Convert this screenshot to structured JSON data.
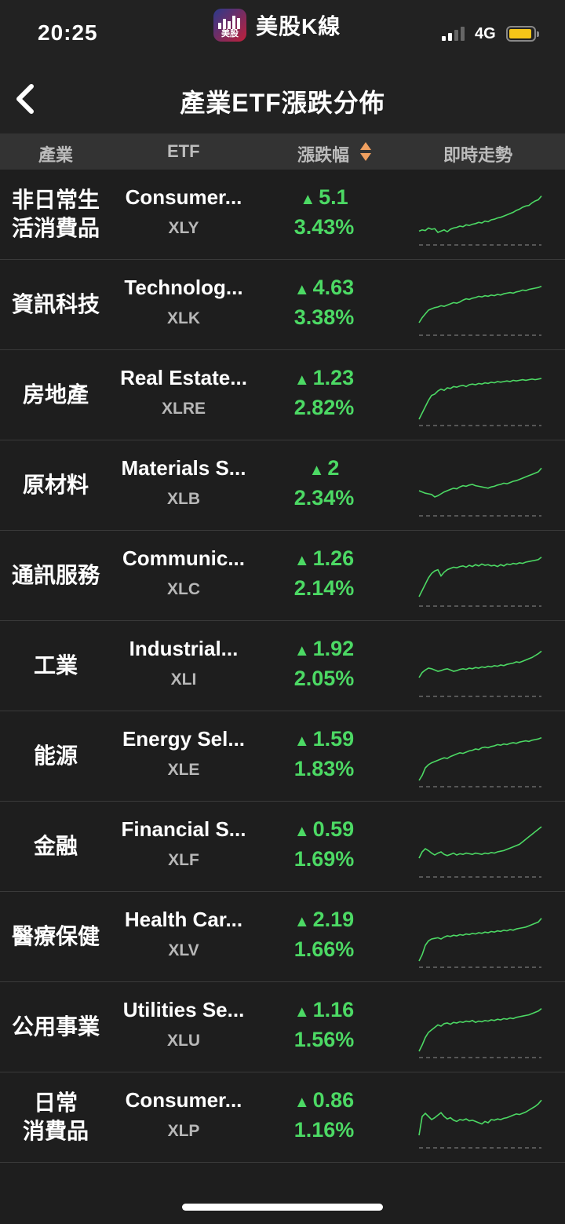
{
  "status_bar": {
    "time": "20:25",
    "network": "4G"
  },
  "app": {
    "name": "美股K線",
    "logo_text": "美股"
  },
  "nav": {
    "title": "產業ETF漲跌分佈"
  },
  "columns": {
    "industry": "產業",
    "etf": "ETF",
    "change": "漲跌幅",
    "trend": "即時走勢"
  },
  "colors": {
    "up": "#4cd964",
    "down": "#ff3b30",
    "background": "#1e1e1e"
  },
  "rows": [
    {
      "industry": "非日常生\n活消費品",
      "etf_name": "Consumer...",
      "symbol": "XLY",
      "change": "5.1",
      "pct": "3.43%",
      "trend": [
        22,
        24,
        23,
        27,
        25,
        26,
        20,
        22,
        24,
        21,
        25,
        27,
        28,
        30,
        29,
        32,
        31,
        33,
        34,
        36,
        35,
        38,
        37,
        40,
        41,
        43,
        44,
        46,
        48,
        50,
        52,
        55,
        57,
        60,
        62,
        63,
        67,
        70,
        72,
        78
      ]
    },
    {
      "industry": "資訊科技",
      "etf_name": "Technolog...",
      "symbol": "XLK",
      "change": "4.63",
      "pct": "3.38%",
      "trend": [
        20,
        28,
        34,
        40,
        42,
        44,
        45,
        47,
        46,
        48,
        50,
        52,
        51,
        53,
        56,
        58,
        57,
        59,
        60,
        62,
        61,
        63,
        62,
        64,
        63,
        65,
        64,
        66,
        67,
        68,
        67,
        69,
        70,
        72,
        71,
        73,
        74,
        75,
        76,
        78
      ]
    },
    {
      "industry": "房地產",
      "etf_name": "Real Estate...",
      "symbol": "XLRE",
      "change": "1.23",
      "pct": "2.82%",
      "trend": [
        10,
        20,
        30,
        40,
        48,
        50,
        55,
        58,
        56,
        60,
        59,
        62,
        61,
        63,
        64,
        62,
        65,
        66,
        65,
        67,
        66,
        68,
        67,
        69,
        68,
        70,
        69,
        70,
        71,
        70,
        72,
        71,
        72,
        73,
        72,
        73,
        74,
        73,
        74,
        75
      ]
    },
    {
      "industry": "原材料",
      "etf_name": "Materials S...",
      "symbol": "XLB",
      "change": "2",
      "pct": "2.34%",
      "trend": [
        40,
        38,
        36,
        35,
        34,
        30,
        32,
        35,
        38,
        40,
        42,
        44,
        43,
        46,
        48,
        47,
        49,
        50,
        48,
        47,
        46,
        45,
        44,
        46,
        47,
        49,
        50,
        52,
        51,
        53,
        55,
        56,
        58,
        60,
        62,
        64,
        66,
        68,
        70,
        76
      ]
    },
    {
      "industry": "通訊服務",
      "etf_name": "Communic...",
      "symbol": "XLC",
      "change": "1.26",
      "pct": "2.14%",
      "trend": [
        15,
        25,
        35,
        45,
        52,
        56,
        58,
        48,
        54,
        58,
        60,
        62,
        61,
        63,
        64,
        62,
        65,
        63,
        66,
        64,
        67,
        65,
        66,
        64,
        65,
        63,
        66,
        64,
        67,
        66,
        68,
        67,
        69,
        68,
        70,
        71,
        72,
        73,
        74,
        78
      ]
    },
    {
      "industry": "工業",
      "etf_name": "Industrial...",
      "symbol": "XLI",
      "change": "1.92",
      "pct": "2.05%",
      "trend": [
        30,
        38,
        42,
        45,
        44,
        42,
        40,
        41,
        43,
        44,
        42,
        40,
        41,
        43,
        44,
        43,
        45,
        44,
        46,
        45,
        47,
        46,
        48,
        47,
        49,
        48,
        50,
        49,
        51,
        52,
        53,
        55,
        54,
        56,
        58,
        60,
        62,
        65,
        68,
        72
      ]
    },
    {
      "industry": "能源",
      "etf_name": "Energy Sel...",
      "symbol": "XLE",
      "change": "1.59",
      "pct": "1.83%",
      "trend": [
        10,
        18,
        30,
        35,
        38,
        40,
        42,
        44,
        46,
        45,
        48,
        50,
        52,
        54,
        53,
        55,
        57,
        58,
        60,
        59,
        62,
        63,
        62,
        64,
        65,
        67,
        66,
        68,
        67,
        69,
        70,
        69,
        71,
        72,
        73,
        72,
        74,
        75,
        76,
        78
      ]
    },
    {
      "industry": "金融",
      "etf_name": "Financial S...",
      "symbol": "XLF",
      "change": "0.59",
      "pct": "1.69%",
      "trend": [
        30,
        40,
        45,
        42,
        38,
        35,
        38,
        40,
        36,
        34,
        36,
        38,
        35,
        37,
        36,
        38,
        37,
        36,
        38,
        37,
        36,
        38,
        37,
        39,
        38,
        40,
        41,
        42,
        44,
        46,
        48,
        50,
        52,
        56,
        60,
        64,
        68,
        72,
        76,
        80
      ]
    },
    {
      "industry": "醫療保健",
      "etf_name": "Health Car...",
      "symbol": "XLV",
      "change": "2.19",
      "pct": "1.66%",
      "trend": [
        10,
        20,
        35,
        42,
        45,
        46,
        47,
        45,
        48,
        50,
        49,
        51,
        50,
        52,
        51,
        53,
        52,
        54,
        53,
        55,
        54,
        56,
        55,
        57,
        56,
        58,
        57,
        59,
        58,
        60,
        59,
        61,
        62,
        63,
        64,
        66,
        68,
        70,
        72,
        78
      ]
    },
    {
      "industry": "公用事業",
      "etf_name": "Utilities Se...",
      "symbol": "XLU",
      "change": "1.16",
      "pct": "1.56%",
      "trend": [
        10,
        20,
        32,
        40,
        44,
        48,
        52,
        50,
        54,
        55,
        53,
        56,
        55,
        57,
        56,
        58,
        57,
        59,
        56,
        58,
        57,
        59,
        58,
        60,
        59,
        61,
        60,
        62,
        61,
        63,
        62,
        64,
        65,
        66,
        67,
        68,
        70,
        72,
        74,
        78
      ]
    },
    {
      "industry": "日常\n消費品",
      "etf_name": "Consumer...",
      "symbol": "XLP",
      "change": "0.86",
      "pct": "1.16%",
      "trend": [
        20,
        50,
        55,
        50,
        45,
        48,
        52,
        56,
        50,
        46,
        48,
        44,
        42,
        45,
        44,
        46,
        43,
        44,
        42,
        40,
        38,
        42,
        40,
        45,
        44,
        46,
        45,
        47,
        48,
        50,
        52,
        54,
        53,
        55,
        57,
        60,
        63,
        66,
        70,
        76
      ]
    }
  ]
}
